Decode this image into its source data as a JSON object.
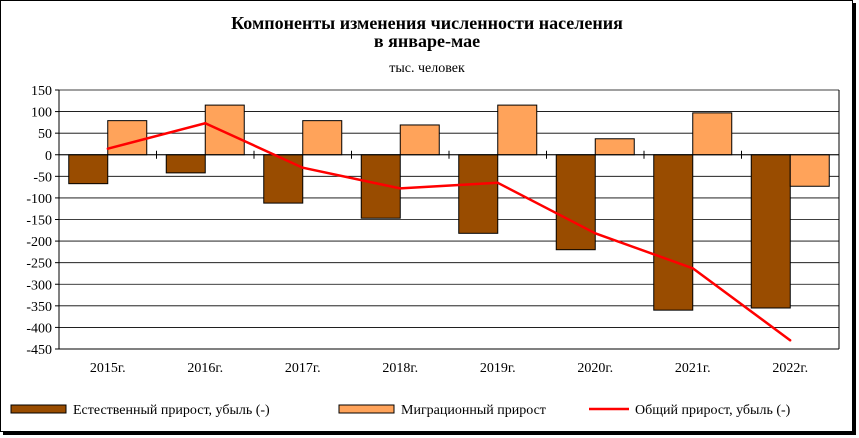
{
  "chart_data": {
    "type": "bar",
    "title_line1": "Компоненты изменения численности населения",
    "title_line2": "в январе-мае",
    "subtitle": "тыс. человек",
    "categories": [
      "2015г.",
      "2016г.",
      "2017г.",
      "2018г.",
      "2019г.",
      "2020г.",
      "2021г.",
      "2022г."
    ],
    "ylim": [
      -450,
      150
    ],
    "yticks": [
      150,
      100,
      50,
      0,
      -50,
      -100,
      -150,
      -200,
      -250,
      -300,
      -350,
      -400,
      -450
    ],
    "ytick_labels": [
      "150",
      "100",
      "50",
      "0",
      "-50",
      "-100",
      "-150",
      "-200",
      "-250",
      "-300",
      "-350",
      "-400",
      "-450"
    ],
    "grid": true,
    "legend_position": "bottom",
    "series": [
      {
        "name": "Естественный прирост, убыль (-)",
        "kind": "bar",
        "color": "#994c00",
        "values": [
          -67,
          -42,
          -112,
          -147,
          -182,
          -220,
          -360,
          -355
        ]
      },
      {
        "name": "Миграционный прирост",
        "kind": "bar",
        "color": "#ffa35a",
        "values": [
          79,
          115,
          79,
          69,
          115,
          37,
          97,
          -73
        ]
      },
      {
        "name": "Общий прирост, убыль (-)",
        "kind": "line",
        "color": "#ff0000",
        "values": [
          14,
          73,
          -30,
          -78,
          -65,
          -182,
          -263,
          -430
        ]
      }
    ]
  }
}
